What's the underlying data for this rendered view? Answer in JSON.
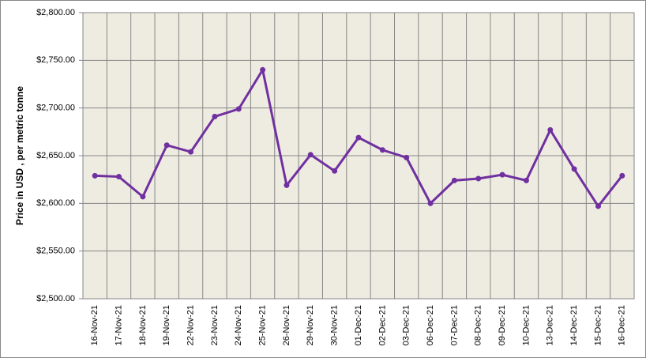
{
  "chart_data": {
    "type": "line",
    "y_label": "Price in USD , per metric tonne",
    "categories": [
      "16-Nov-21",
      "17-Nov-21",
      "18-Nov-21",
      "19-Nov-21",
      "22-Nov-21",
      "23-Nov-21",
      "24-Nov-21",
      "25-Nov-21",
      "26-Nov-21",
      "29-Nov-21",
      "30-Nov-21",
      "01-Dec-21",
      "02-Dec-21",
      "03-Dec-21",
      "06-Dec-21",
      "07-Dec-21",
      "08-Dec-21",
      "09-Dec-21",
      "10-Dec-21",
      "13-Dec-21",
      "14-Dec-21",
      "15-Dec-21",
      "16-Dec-21"
    ],
    "values": [
      2629,
      2628,
      2607,
      2661,
      2654,
      2691,
      2699,
      2740,
      2619,
      2651,
      2634,
      2669,
      2656,
      2648,
      2600,
      2624,
      2626,
      2630,
      2624,
      2677,
      2636,
      2597,
      2629
    ],
    "color": "#7030a0",
    "ylim": [
      2500,
      2800
    ],
    "yticks": [
      {
        "value": 2500,
        "label": "$2,500.00"
      },
      {
        "value": 2550,
        "label": "$2,550.00"
      },
      {
        "value": 2600,
        "label": "$2,600.00"
      },
      {
        "value": 2650,
        "label": "$2,650.00"
      },
      {
        "value": 2700,
        "label": "$2,700.00"
      },
      {
        "value": 2750,
        "label": "$2,750.00"
      },
      {
        "value": 2800,
        "label": "$2,800.00"
      }
    ],
    "grid": true
  }
}
